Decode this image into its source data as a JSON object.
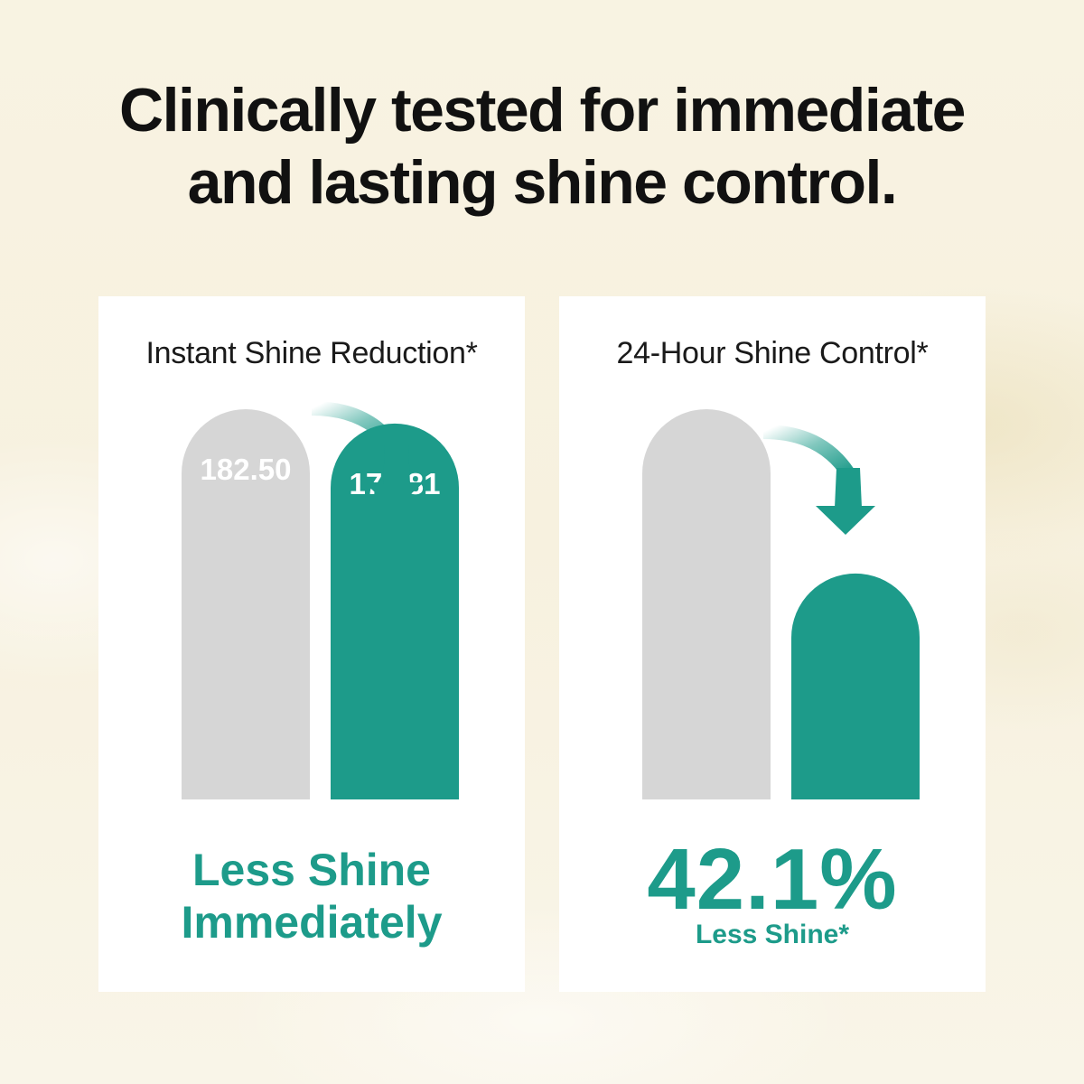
{
  "headline": {
    "line1": "Clinically tested for immediate",
    "line2": "and lasting shine control."
  },
  "colors": {
    "background": "#f8f3e3",
    "panel": "#ffffff",
    "before_bar": "#d6d6d6",
    "after_bar": "#1d9b8a",
    "accent_text": "#1d9b8a",
    "headline_text": "#111111"
  },
  "chart_data": [
    {
      "type": "bar",
      "title": "Instant Shine Reduction*",
      "categories": [
        "",
        ""
      ],
      "values": [
        182.5,
        175.81
      ],
      "value_labels": [
        "182.50",
        "175.81"
      ],
      "ylim": [
        0,
        182.5
      ],
      "grid": false,
      "annotation_icon": "teal-downward-curved-arrow",
      "claim": {
        "line1": "Less Shine",
        "line2": "Immediately"
      }
    },
    {
      "type": "bar",
      "title": "24-Hour Shine Control*",
      "categories": [
        "",
        ""
      ],
      "values": [
        100,
        57.9
      ],
      "value_labels": [
        "",
        ""
      ],
      "ylim": [
        0,
        100
      ],
      "grid": false,
      "annotation_icon": "teal-downward-curved-arrow",
      "claim": {
        "value": "42.1%",
        "caption": "Less Shine*"
      }
    }
  ]
}
